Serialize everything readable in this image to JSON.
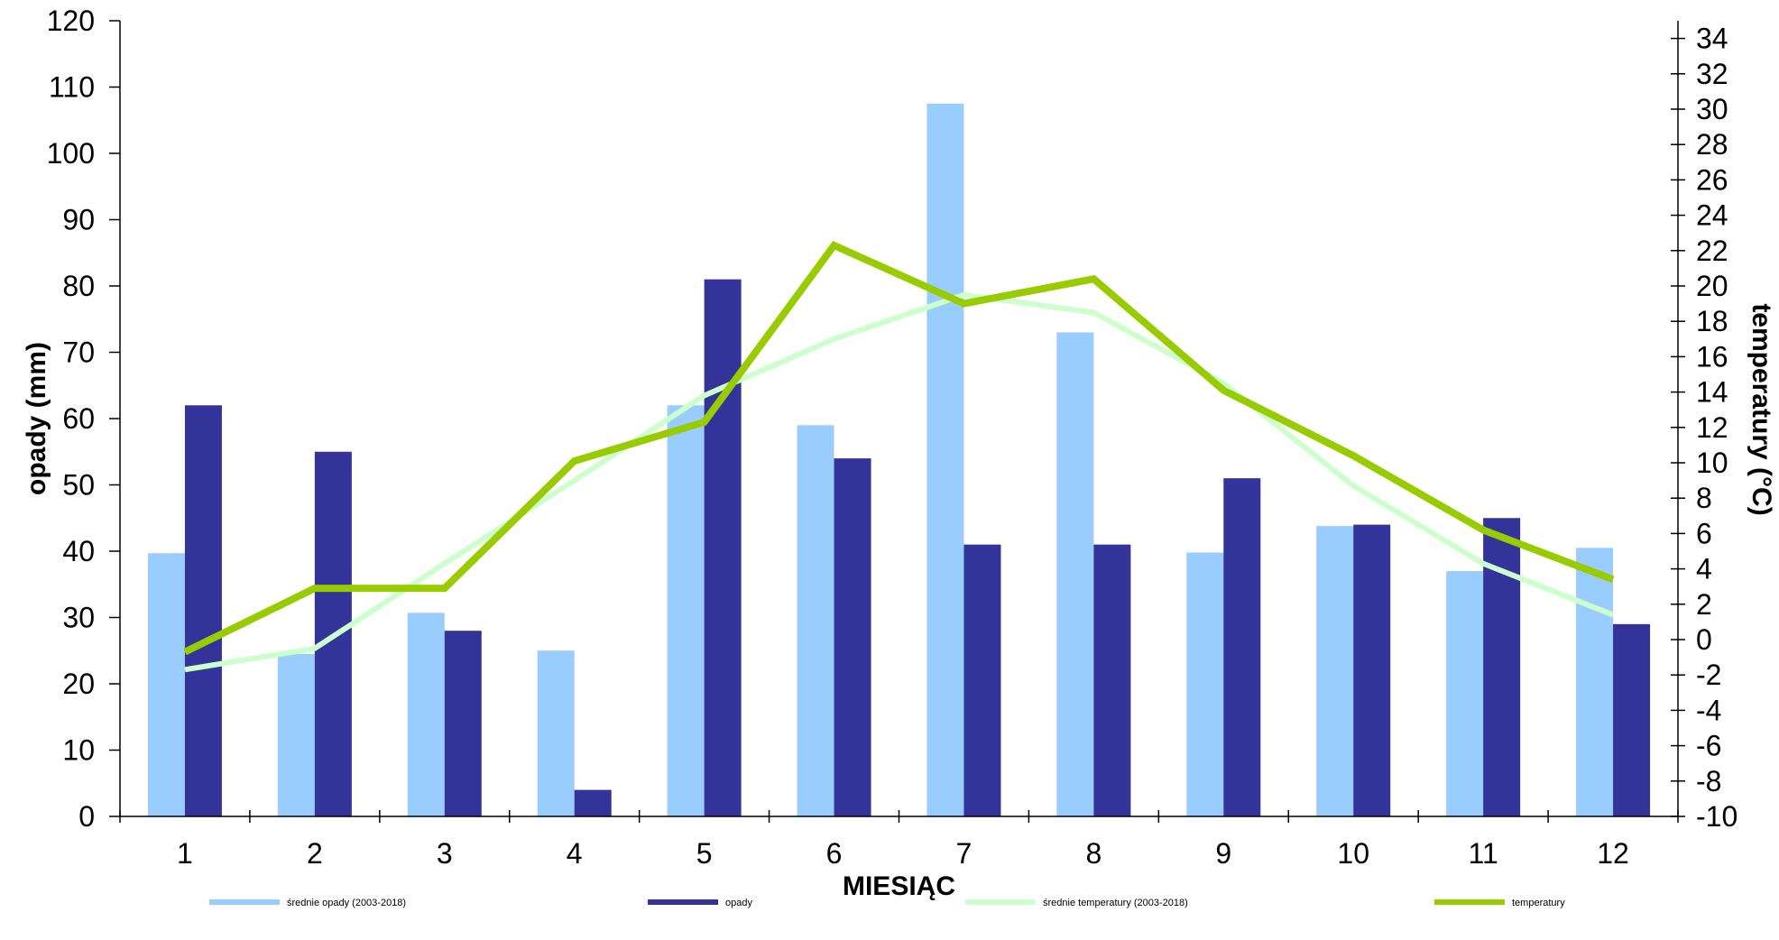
{
  "chart_data": {
    "type": "bar",
    "title": "",
    "categories": [
      "1",
      "2",
      "3",
      "4",
      "5",
      "6",
      "7",
      "8",
      "9",
      "10",
      "11",
      "12"
    ],
    "xlabel": "MIESIĄC",
    "ylabel": "opady (mm)",
    "y2label": "temperatury (°C)",
    "ylim": [
      0,
      120
    ],
    "y2lim": [
      -10,
      35
    ],
    "yticks": [
      "0",
      "10",
      "20",
      "30",
      "40",
      "50",
      "60",
      "70",
      "80",
      "90",
      "100",
      "110",
      "120"
    ],
    "y2ticks": [
      "-10",
      "-8",
      "-6",
      "-4",
      "-2",
      "0",
      "2",
      "4",
      "6",
      "8",
      "10",
      "12",
      "14",
      "16",
      "18",
      "20",
      "22",
      "24",
      "26",
      "28",
      "30",
      "32",
      "34"
    ],
    "legend_position": "bottom",
    "grid": false,
    "series": [
      {
        "name": "średnie opady (2003-2018)",
        "kind": "bar",
        "axis": "left",
        "color": "#99ccff",
        "values": [
          39.7,
          24.5,
          30.7,
          25,
          62,
          59,
          107.5,
          73,
          39.8,
          43.8,
          37,
          40.5
        ]
      },
      {
        "name": "opady",
        "kind": "bar",
        "axis": "left",
        "color": "#333399",
        "values": [
          62,
          55,
          28,
          4,
          81,
          54,
          41,
          41,
          51,
          44,
          45,
          29
        ]
      },
      {
        "name": "średnie temperatury (2003-2018)",
        "kind": "line",
        "axis": "right",
        "color": "#ccffcc",
        "values": [
          -1.7,
          -0.5,
          4.3,
          9,
          13.8,
          17,
          19.5,
          18.5,
          14.5,
          8.7,
          4.3,
          1.4
        ]
      },
      {
        "name": "temperatury",
        "kind": "line",
        "axis": "right",
        "color": "#99cc00",
        "values": [
          -0.7,
          2.9,
          2.9,
          10.1,
          12.3,
          22.3,
          19,
          20.4,
          14.1,
          10.4,
          6.2,
          3.4
        ]
      }
    ]
  }
}
